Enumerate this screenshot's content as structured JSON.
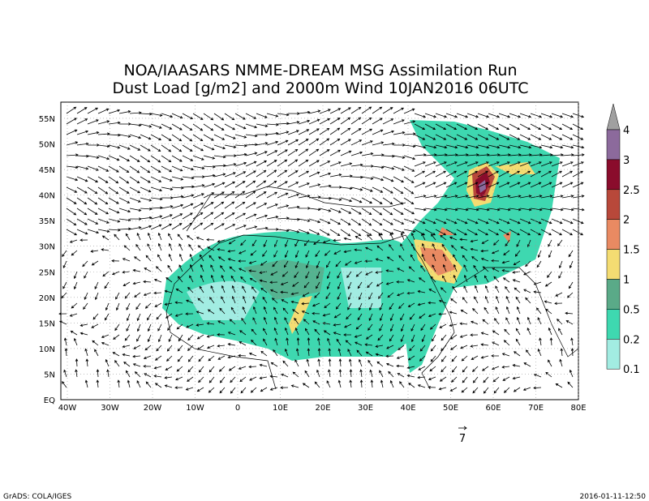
{
  "header": {
    "title_line_1": "NOA/IAASARS NMME-DREAM MSG Assimilation Run",
    "title_line_2": "Dust Load [g/m2] and 2000m Wind 10JAN2016 06UTC"
  },
  "map": {
    "lon_labels": [
      "40W",
      "30W",
      "20W",
      "10W",
      "0",
      "10E",
      "20E",
      "30E",
      "40E",
      "50E",
      "60E",
      "70E",
      "80E"
    ],
    "lat_labels": [
      "EQ",
      "5N",
      "10N",
      "15N",
      "20N",
      "25N",
      "30N",
      "35N",
      "40N",
      "45N",
      "50N",
      "55N"
    ],
    "vector_reference": "7"
  },
  "colorbar": {
    "labels": [
      "4",
      "3",
      "2.5",
      "2",
      "1.5",
      "1",
      "0.5",
      "0.2",
      "0.1"
    ],
    "colors": [
      "#a0a0a0",
      "#8c6a9c",
      "#8a0c2c",
      "#b8483a",
      "#e98a62",
      "#f4dc72",
      "#5aaa88",
      "#3ed8b0",
      "#a2ece2"
    ]
  },
  "footer": {
    "left": "GrADS: COLA/IGES",
    "right": "2016-01-11-12:50"
  }
}
